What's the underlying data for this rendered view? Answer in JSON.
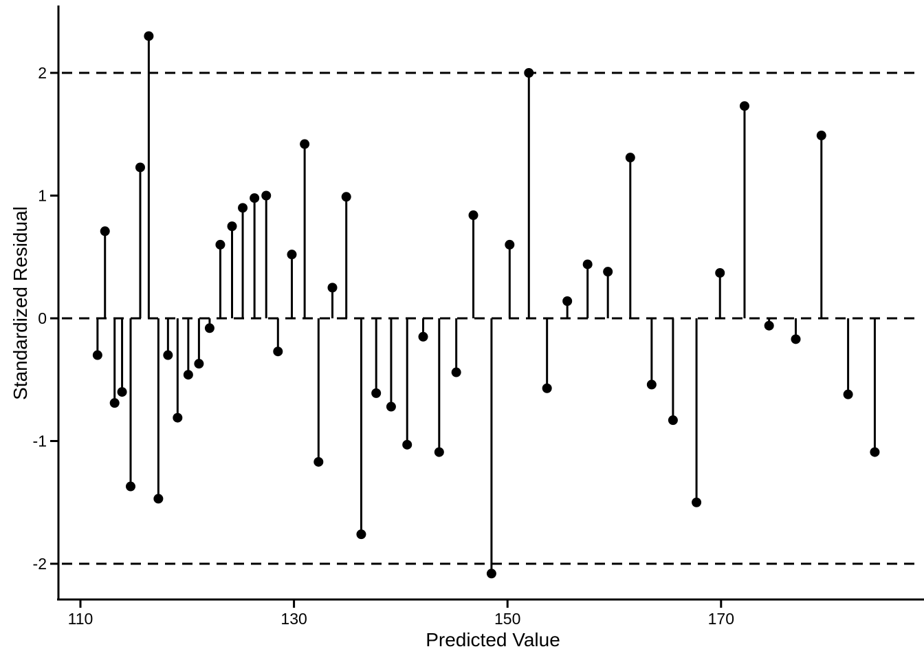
{
  "chart_data": {
    "type": "scatter",
    "style": "stem-plot (lollipop residual plot)",
    "title": "",
    "xlabel": "Predicted Value",
    "ylabel": "Standardized Residual",
    "x_ticks": [
      110,
      130,
      150,
      170
    ],
    "y_ticks": [
      2,
      1,
      0,
      -1,
      -2
    ],
    "xlim": [
      108.3,
      189.0
    ],
    "ylim": [
      -2.3,
      2.55
    ],
    "grid": false,
    "legend": false,
    "reference_lines": {
      "y_values": [
        2,
        0,
        -2
      ],
      "line_style": "dashed"
    },
    "x": [
      111.6,
      112.3,
      113.2,
      113.9,
      114.7,
      115.6,
      116.4,
      117.3,
      118.2,
      119.1,
      120.1,
      121.1,
      122.1,
      123.1,
      124.2,
      125.2,
      126.3,
      127.4,
      128.5,
      129.8,
      131.0,
      132.3,
      133.6,
      134.9,
      136.3,
      137.7,
      139.1,
      140.6,
      142.1,
      143.6,
      145.2,
      146.8,
      148.5,
      150.2,
      152.0,
      153.7,
      155.6,
      157.5,
      159.4,
      161.5,
      163.5,
      165.5,
      167.7,
      169.9,
      172.2,
      174.5,
      177.0,
      179.4,
      181.9,
      184.4
    ],
    "y": [
      -0.3,
      0.71,
      -0.69,
      -0.6,
      -1.37,
      1.23,
      2.3,
      -1.47,
      -0.3,
      -0.81,
      -0.46,
      -0.37,
      -0.08,
      0.6,
      0.75,
      0.9,
      0.98,
      1.0,
      -0.27,
      0.52,
      1.42,
      -1.17,
      0.25,
      0.99,
      -1.76,
      -0.61,
      -0.72,
      -1.03,
      -0.15,
      -1.09,
      -0.44,
      0.84,
      -2.08,
      0.6,
      2.0,
      -0.57,
      0.14,
      0.44,
      0.38,
      1.31,
      -0.54,
      -0.83,
      -1.5,
      0.37,
      1.73,
      -0.06,
      -0.17,
      1.49,
      -0.62,
      -1.09
    ],
    "colors": {
      "stroke": "#000000",
      "point": "#000000",
      "background": "#ffffff"
    }
  }
}
